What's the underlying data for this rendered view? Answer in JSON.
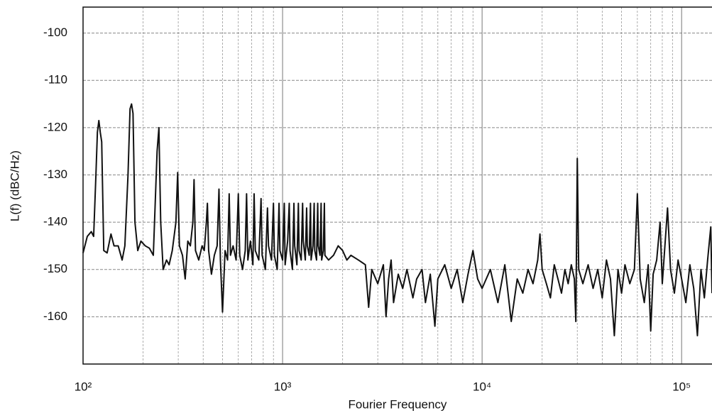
{
  "chart_data": {
    "type": "line",
    "x_label": "Fourier Frequency",
    "y_label": "L(f) (dBC/Hz)",
    "xscale": "log",
    "xlim": [
      100,
      142000
    ],
    "ylim": [
      -170,
      -94.5
    ],
    "xticks": [
      {
        "value": 100,
        "label": "10²"
      },
      {
        "value": 1000,
        "label": "10³"
      },
      {
        "value": 10000,
        "label": "10⁴"
      },
      {
        "value": 100000,
        "label": "10⁵"
      }
    ],
    "x_minor_ticks": [
      200,
      300,
      400,
      500,
      600,
      700,
      800,
      900,
      2000,
      3000,
      4000,
      5000,
      6000,
      7000,
      8000,
      9000,
      20000,
      30000,
      40000,
      50000,
      60000,
      70000,
      80000,
      90000
    ],
    "yticks": [
      -160,
      -150,
      -140,
      -130,
      -120,
      -110,
      -100
    ],
    "grid": true,
    "series": [
      {
        "color": "#111111",
        "x": [
          100,
          105,
          110,
          113,
          116,
          118,
          120,
          122,
          124,
          127,
          132,
          138,
          143,
          150,
          157,
          162,
          168,
          172,
          175,
          178,
          182,
          188,
          195,
          205,
          215,
          225,
          235,
          240,
          245,
          252,
          262,
          270,
          280,
          292,
          298,
          304,
          315,
          325,
          335,
          345,
          355,
          360,
          366,
          380,
          395,
          405,
          415,
          420,
          426,
          440,
          455,
          470,
          480,
          488,
          500,
          515,
          530,
          540,
          548,
          565,
          585,
          600,
          610,
          630,
          650,
          660,
          670,
          690,
          710,
          720,
          730,
          760,
          780,
          790,
          820,
          840,
          850,
          880,
          900,
          910,
          940,
          960,
          970,
          1000,
          1020,
          1030,
          1060,
          1080,
          1090,
          1120,
          1140,
          1150,
          1180,
          1200,
          1210,
          1240,
          1260,
          1270,
          1300,
          1320,
          1330,
          1360,
          1380,
          1390,
          1420,
          1440,
          1450,
          1480,
          1500,
          1510,
          1540,
          1560,
          1570,
          1600,
          1620,
          1630,
          1700,
          1800,
          1900,
          2000,
          2100,
          2200,
          2400,
          2600,
          2700,
          2800,
          3000,
          3200,
          3300,
          3400,
          3500,
          3600,
          3800,
          4000,
          4200,
          4500,
          4700,
          5000,
          5200,
          5500,
          5800,
          6000,
          6500,
          7000,
          7500,
          8000,
          8500,
          9000,
          9500,
          10000,
          11000,
          12000,
          13000,
          14000,
          15000,
          16000,
          17000,
          18000,
          19000,
          19500,
          20000,
          21000,
          22000,
          23000,
          24000,
          25000,
          26000,
          27000,
          28000,
          29000,
          29500,
          30000,
          30500,
          32000,
          34000,
          36000,
          38000,
          40000,
          42000,
          44000,
          46000,
          48000,
          50000,
          52000,
          55000,
          58000,
          60000,
          62000,
          65000,
          68000,
          70000,
          72000,
          75000,
          78000,
          80000,
          85000,
          88000,
          92000,
          96000,
          100000,
          105000,
          110000,
          115000,
          120000,
          125000,
          130000,
          135000,
          140000,
          142000
        ],
        "values": [
          -146.5,
          -143,
          -142,
          -143,
          -130,
          -121,
          -118.5,
          -121,
          -123,
          -146,
          -146.5,
          -142.5,
          -145,
          -145,
          -148,
          -145,
          -130,
          -116,
          -115,
          -117,
          -140,
          -146,
          -144,
          -145,
          -145.5,
          -147,
          -125,
          -120,
          -140,
          -150,
          -148,
          -149,
          -146,
          -140,
          -129.5,
          -145,
          -147,
          -152,
          -144,
          -145,
          -140,
          -131,
          -146,
          -148,
          -145,
          -146,
          -140,
          -136,
          -146,
          -151,
          -147,
          -145,
          -133,
          -148,
          -159,
          -146,
          -148,
          -134,
          -147,
          -145,
          -148,
          -134,
          -147,
          -150,
          -146,
          -134,
          -148,
          -144,
          -149,
          -134,
          -146,
          -148,
          -135,
          -147,
          -150,
          -137,
          -145,
          -148,
          -136,
          -147,
          -150,
          -136,
          -146,
          -148,
          -136,
          -149,
          -144,
          -136,
          -146,
          -150,
          -136,
          -145,
          -149,
          -136,
          -146,
          -148,
          -136,
          -144,
          -148,
          -137,
          -145,
          -147,
          -136,
          -148,
          -145,
          -136,
          -146,
          -148,
          -136,
          -145,
          -147,
          -136,
          -148,
          -146,
          -136,
          -147,
          -148,
          -147,
          -145,
          -146,
          -148,
          -147,
          -148,
          -149,
          -158,
          -150,
          -153,
          -149,
          -160,
          -152,
          -148,
          -157,
          -151,
          -154,
          -150,
          -156,
          -152,
          -150,
          -157,
          -151,
          -162,
          -152,
          -149,
          -154,
          -150,
          -157,
          -151,
          -146,
          -152,
          -154,
          -150,
          -157,
          -149,
          -161,
          -152,
          -155,
          -150,
          -153,
          -148,
          -142.5,
          -150,
          -153,
          -156,
          -149,
          -152,
          -155,
          -150,
          -153,
          -149,
          -152,
          -161,
          -126.5,
          -150,
          -153,
          -149,
          -154,
          -150,
          -156,
          -148,
          -152,
          -164,
          -150,
          -155,
          -149,
          -153,
          -150,
          -134,
          -152,
          -157,
          -149,
          -163,
          -151,
          -148,
          -140,
          -153,
          -137,
          -150,
          -155,
          -148,
          -152,
          -157,
          -149,
          -154,
          -164,
          -150,
          -156,
          -148,
          -141,
          -155
        ]
      }
    ]
  }
}
